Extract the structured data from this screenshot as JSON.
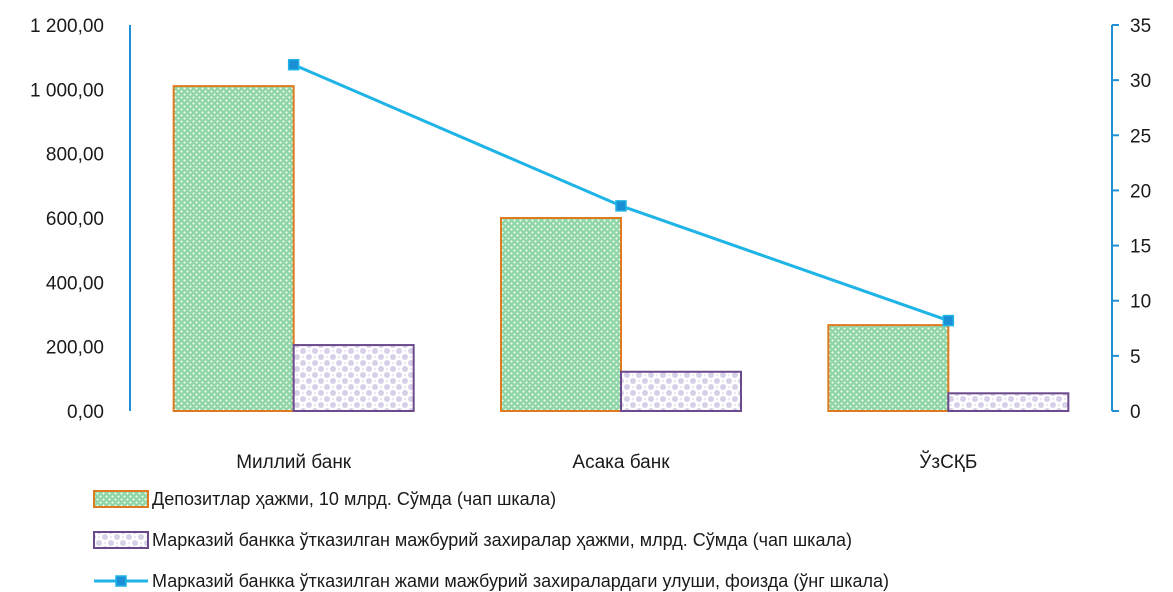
{
  "chart_data": {
    "type": "bar",
    "categories": [
      "Миллий банк",
      "Асака банк",
      "ЎзСҚБ"
    ],
    "series": [
      {
        "name": "Депозитлар ҳажми, 10 млрд. Сўмда (чап шкала)",
        "kind": "bar",
        "axis": "left",
        "values": [
          1010,
          600,
          267
        ],
        "fill": "#8fd6a6",
        "stroke": "#e07a1f"
      },
      {
        "name": "Марказий банкка ўтказилган мажбурий захиралар ҳажми, млрд. Сўмда (чап шкала)",
        "kind": "bar",
        "axis": "left",
        "values": [
          205,
          122,
          55
        ],
        "fill": "#d6cfe6",
        "stroke": "#6a4a8c"
      },
      {
        "name": "Марказий банкка ўтказилган жами мажбурий захиралардаги улуши, фоизда (ўнг шкала)",
        "kind": "line",
        "axis": "right",
        "values": [
          31.4,
          18.6,
          8.2
        ],
        "color": "#1fb4e6",
        "marker_color": "#1a8fd6"
      }
    ],
    "left_axis": {
      "ylim": [
        0,
        1200
      ],
      "ticks": [
        "0,00",
        "200,00",
        "400,00",
        "600,00",
        "800,00",
        "1 000,00",
        "1 200,00"
      ],
      "tick_values": [
        0,
        200,
        400,
        600,
        800,
        1000,
        1200
      ]
    },
    "right_axis": {
      "ylim": [
        0,
        35
      ],
      "ticks": [
        "0",
        "5",
        "10",
        "15",
        "20",
        "25",
        "30",
        "35"
      ],
      "tick_values": [
        0,
        5,
        10,
        15,
        20,
        25,
        30,
        35
      ],
      "color": "#1f8fd6"
    },
    "grid": false,
    "legend_position": "bottom-left"
  }
}
